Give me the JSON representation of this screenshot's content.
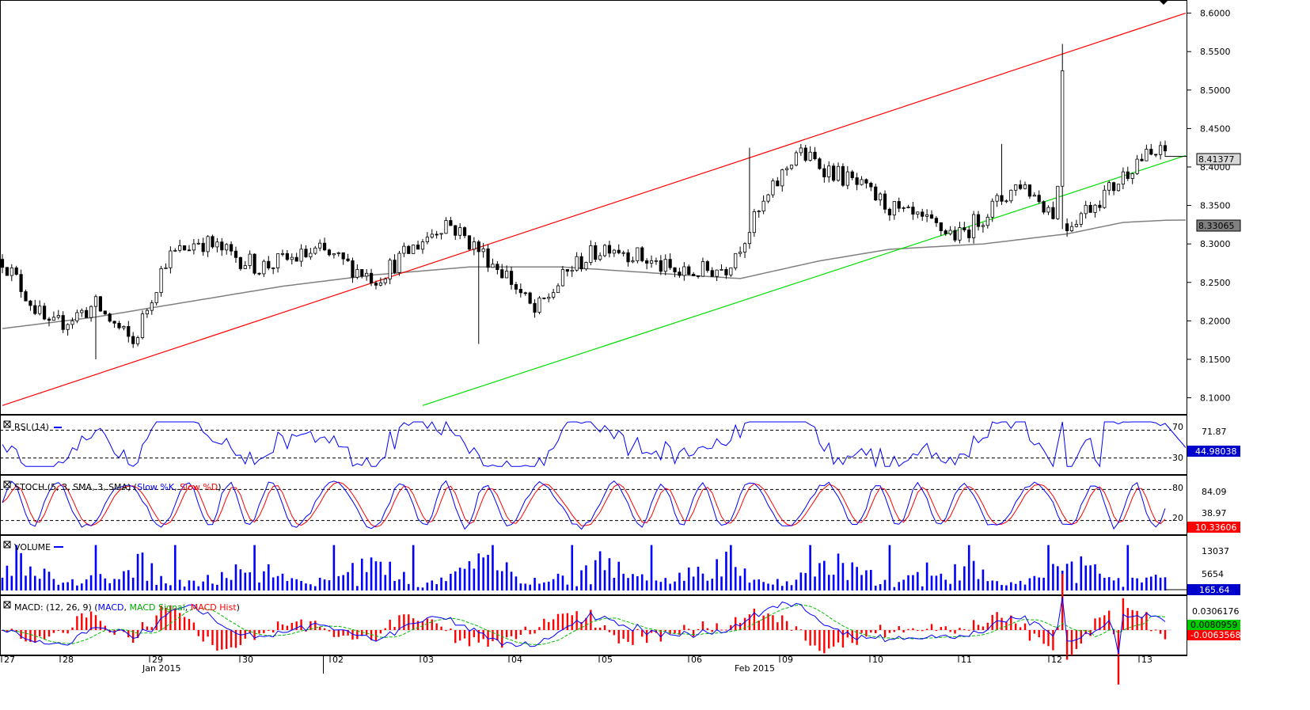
{
  "chart_data": [
    {
      "type": "candlestick",
      "panel": "price",
      "ylim": [
        8.08,
        8.615
      ],
      "y_ticks": [
        "8.6000",
        "8.5500",
        "8.5000",
        "8.4500",
        "8.4000",
        "8.3500",
        "8.3000",
        "8.2500",
        "8.2000",
        "8.1500",
        "8.1000"
      ],
      "price_badge": "8.41377",
      "ma_badge": "8.33065",
      "bars": 250,
      "anchors": [
        [
          0,
          8.28
        ],
        [
          10,
          8.19
        ],
        [
          20,
          8.22
        ],
        [
          28,
          8.17
        ],
        [
          35,
          8.28
        ],
        [
          42,
          8.305
        ],
        [
          55,
          8.27
        ],
        [
          68,
          8.29
        ],
        [
          80,
          8.255
        ],
        [
          95,
          8.33
        ],
        [
          108,
          8.26
        ],
        [
          114,
          8.21
        ],
        [
          122,
          8.27
        ],
        [
          130,
          8.3
        ],
        [
          145,
          8.26
        ],
        [
          155,
          8.27
        ],
        [
          170,
          8.42
        ],
        [
          182,
          8.38
        ],
        [
          192,
          8.34
        ],
        [
          205,
          8.31
        ],
        [
          218,
          8.38
        ],
        [
          228,
          8.325
        ],
        [
          238,
          8.375
        ],
        [
          243,
          8.41
        ],
        [
          250,
          8.42
        ]
      ],
      "overlays": [
        {
          "name": "upper-channel-line",
          "color": "#ff0000",
          "from": [
            0,
            8.09
          ],
          "to": [
            250,
            8.6
          ]
        },
        {
          "name": "lower-channel-line",
          "color": "#00dd00",
          "from": [
            90,
            8.09
          ],
          "to": [
            250,
            8.415
          ]
        },
        {
          "name": "moving-average",
          "color": "#808080",
          "points": [
            [
              0,
              8.19
            ],
            [
              20,
              8.205
            ],
            [
              40,
              8.225
            ],
            [
              60,
              8.245
            ],
            [
              80,
              8.26
            ],
            [
              100,
              8.27
            ],
            [
              120,
              8.27
            ],
            [
              140,
              8.262
            ],
            [
              158,
              8.255
            ],
            [
              175,
              8.278
            ],
            [
              190,
              8.293
            ],
            [
              210,
              8.3
            ],
            [
              228,
              8.313
            ],
            [
              240,
              8.328
            ],
            [
              250,
              8.331
            ]
          ]
        }
      ]
    },
    {
      "type": "line",
      "panel": "rsi",
      "title": "RSI (14)",
      "ylim": [
        8,
        90
      ],
      "levels": [
        {
          "value": 70,
          "label": "70"
        },
        {
          "value": 30,
          "label": "30"
        }
      ],
      "right_labels": [
        "71.87"
      ],
      "badge": "44.98038",
      "series": [
        {
          "name": "RSI",
          "color": "#0000ff"
        }
      ]
    },
    {
      "type": "line",
      "panel": "stoch",
      "title": "STOCH (5, 3, SMA, 3, SMA)",
      "legend": [
        {
          "name": "Slow %K",
          "color": "#0000ff"
        },
        {
          "name": "Slow %D",
          "color": "#ff0000"
        }
      ],
      "ylim": [
        -5,
        105
      ],
      "levels": [
        {
          "value": 80,
          "label": "80"
        },
        {
          "value": 20,
          "label": "20"
        }
      ],
      "right_labels": [
        "84.09",
        "38.97"
      ],
      "badge": "10.33606",
      "series": [
        {
          "name": "Slow %K",
          "color": "#0000ff"
        },
        {
          "name": "Slow %D",
          "color": "#ff0000"
        }
      ]
    },
    {
      "type": "bar",
      "panel": "volume",
      "title": "VOLUME",
      "ylim": [
        0,
        16000
      ],
      "right_labels": [
        "13037",
        "5654"
      ],
      "badge": "165.64",
      "series": [
        {
          "name": "Volume",
          "color": "#0000ff"
        }
      ]
    },
    {
      "type": "line",
      "panel": "macd",
      "title": "MACD: (12, 26, 9)",
      "legend": [
        {
          "name": "MACD",
          "color": "#0000ff"
        },
        {
          "name": "MACD Signal",
          "color": "#00aa00"
        },
        {
          "name": "MACD Hist",
          "color": "#ff0000"
        }
      ],
      "right_labels": [
        "0.0306176"
      ],
      "badges": [
        "0.0080959",
        "-0.0063568"
      ],
      "series": [
        {
          "name": "MACD",
          "color": "#0000ff"
        },
        {
          "name": "MACD Signal",
          "color": "#00bb00"
        },
        {
          "name": "MACD Hist",
          "color": "#ff0000"
        }
      ]
    }
  ],
  "x_axis": {
    "day_labels": [
      "27",
      "28",
      "29",
      "30",
      "02",
      "03",
      "04",
      "05",
      "06",
      "09",
      "10",
      "11",
      "12",
      "13"
    ],
    "month_labels": [
      "Jan 2015",
      "Feb 2015"
    ]
  },
  "colors": {
    "bull": "#ffffff",
    "bear": "#000000",
    "grid": "#000000"
  }
}
